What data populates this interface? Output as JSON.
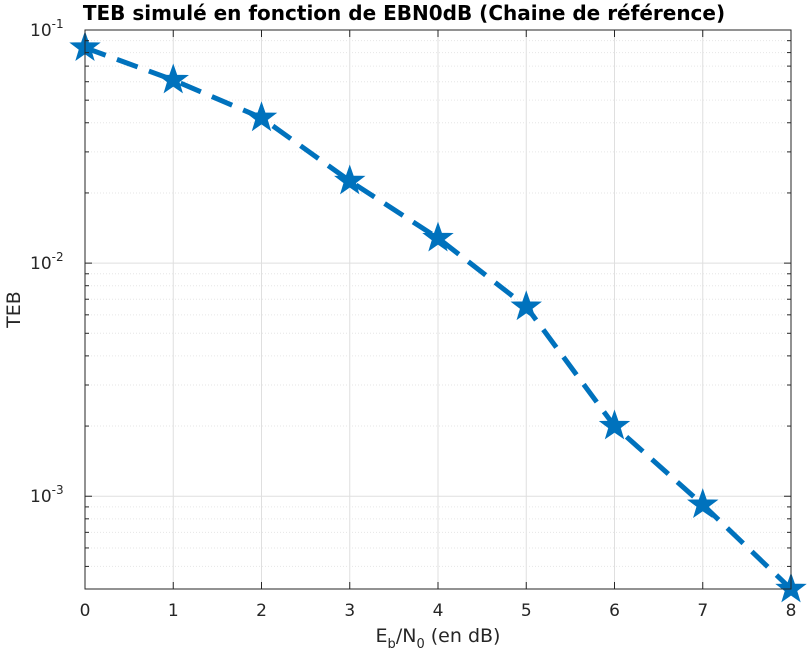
{
  "chart_data": {
    "type": "line",
    "title": "TEB simulé en fonction de EBN0dB (Chaine de référence)",
    "xlabel": {
      "E": "E",
      "b": "b",
      "slash_N": "/N",
      "zero": "0",
      "rest": " (en dB)"
    },
    "ylabel": "TEB",
    "yscale": "log",
    "xlim": [
      0,
      8
    ],
    "ylim": [
      0.0004,
      0.1
    ],
    "grid": true,
    "x": [
      0,
      1,
      2,
      3,
      4,
      5,
      6,
      7,
      8
    ],
    "y": [
      0.084,
      0.061,
      0.042,
      0.0225,
      0.0128,
      0.0065,
      0.002,
      0.00092,
      0.0004
    ],
    "x_ticks": [
      "0",
      "1",
      "2",
      "3",
      "4",
      "5",
      "6",
      "7",
      "8"
    ],
    "y_ticks": [
      {
        "base": "10",
        "exp": "-1"
      },
      {
        "base": "10",
        "exp": "-2"
      },
      {
        "base": "10",
        "exp": "-3"
      }
    ],
    "line_style": "dashed",
    "marker": "star",
    "color": "#0072BD"
  }
}
